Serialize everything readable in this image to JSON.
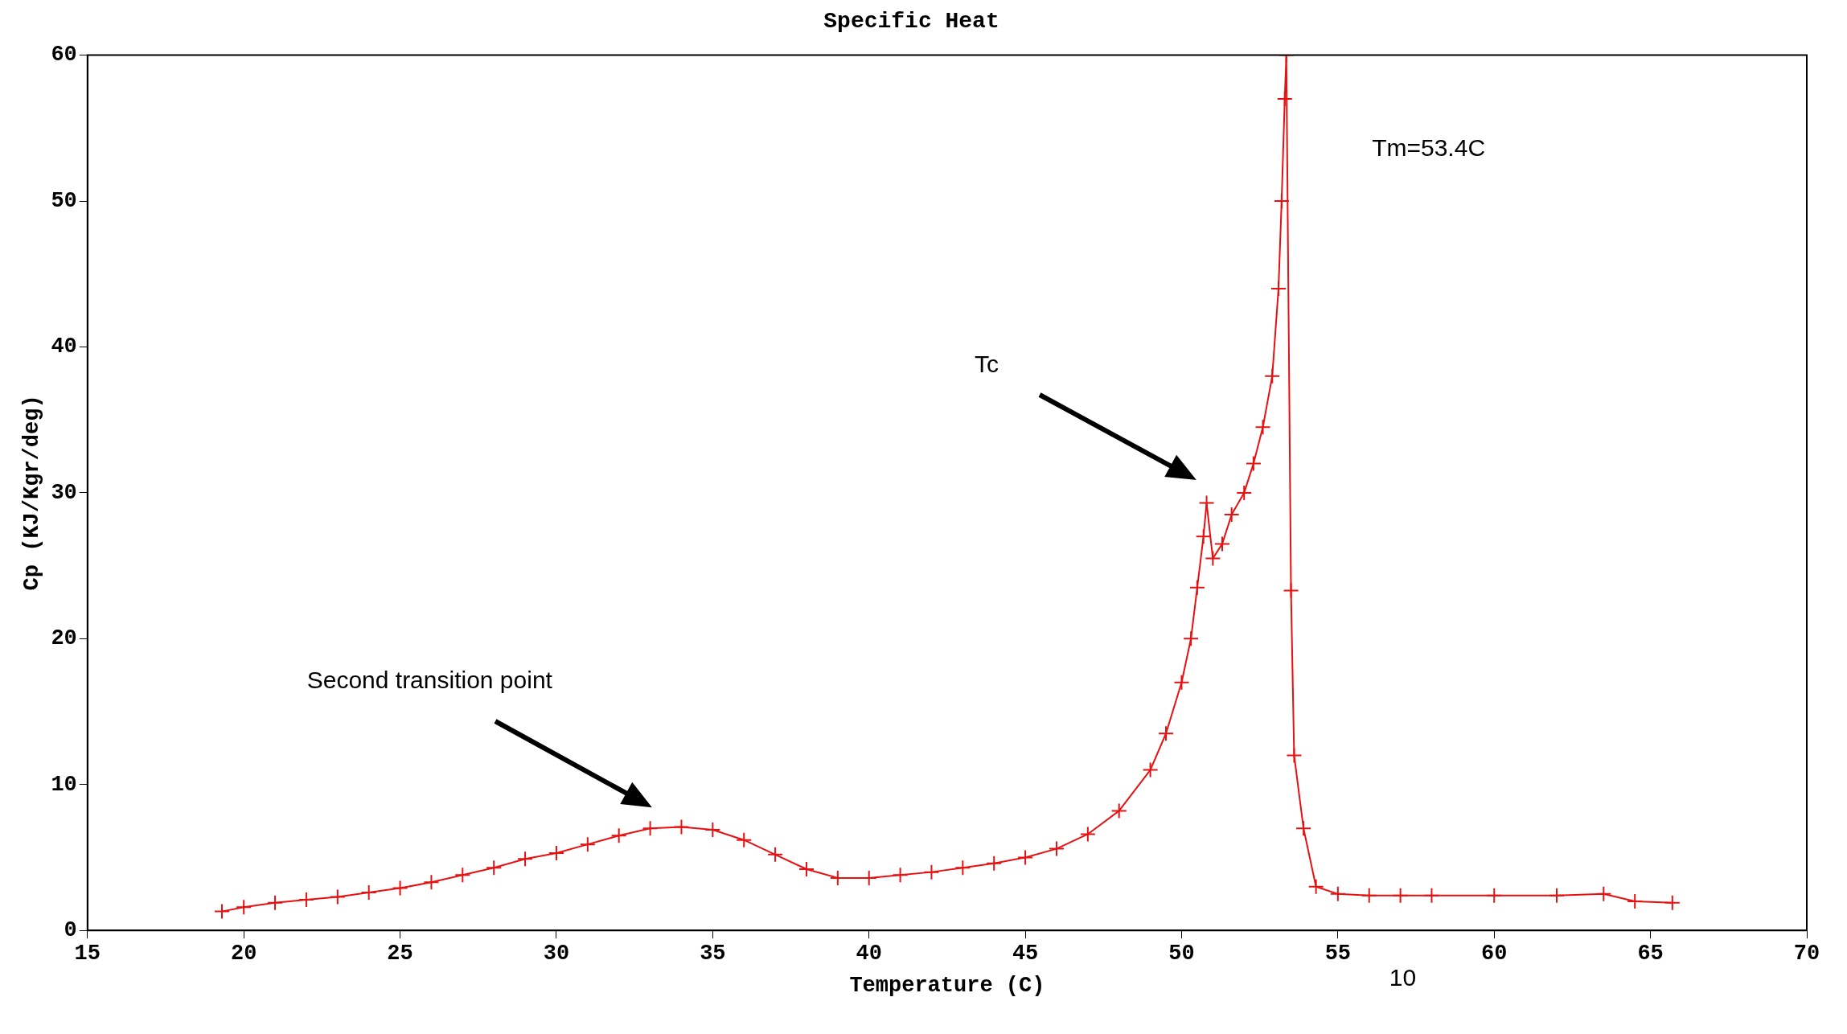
{
  "chart_data": {
    "type": "line",
    "title": "Specific Heat",
    "xlabel": "Temperature (C)",
    "ylabel": "Cp (KJ/Kgr/deg)",
    "x": [
      19.3,
      20,
      21,
      22,
      23,
      24,
      25,
      26,
      27,
      28,
      29,
      30,
      31,
      32,
      33,
      34,
      35,
      36,
      37,
      38,
      39,
      40,
      41,
      42,
      43,
      44,
      45,
      46,
      47,
      48,
      49,
      49.5,
      50,
      50.3,
      50.5,
      50.7,
      50.8,
      51,
      51.3,
      51.6,
      52,
      52.3,
      52.6,
      52.9,
      53.1,
      53.2,
      53.3,
      53.35,
      53.5,
      53.6,
      53.9,
      54.3,
      55,
      56,
      57,
      58,
      60,
      62,
      63.5,
      64.5,
      65.7
    ],
    "series": [
      {
        "color": "#e81010",
        "values": [
          1.3,
          1.6,
          1.9,
          2.1,
          2.3,
          2.6,
          2.9,
          3.3,
          3.8,
          4.3,
          4.9,
          5.3,
          5.9,
          6.5,
          7.0,
          7.1,
          6.9,
          6.2,
          5.2,
          4.2,
          3.6,
          3.6,
          3.8,
          4.0,
          4.3,
          4.6,
          5.0,
          5.6,
          6.6,
          8.2,
          11.0,
          13.5,
          17,
          20,
          23.5,
          27,
          29.3,
          25.5,
          26.5,
          28.5,
          30,
          32,
          34.5,
          38,
          44,
          50,
          57,
          60,
          23.3,
          12,
          7,
          3,
          2.5,
          2.4,
          2.4,
          2.4,
          2.4,
          2.4,
          2.5,
          2.0,
          1.9
        ]
      }
    ],
    "xlim": [
      15,
      70
    ],
    "xticks": [
      15,
      20,
      25,
      30,
      35,
      40,
      45,
      50,
      55,
      60,
      65,
      70
    ],
    "ylim": [
      0,
      60
    ],
    "yticks": [
      0,
      10,
      20,
      30,
      40,
      50,
      60
    ],
    "grid": false,
    "legend": false,
    "marker": "cross",
    "line_style": "solid",
    "annotations": [
      "Tc",
      "Second transition point",
      "Tm=53.4C",
      "10"
    ]
  }
}
